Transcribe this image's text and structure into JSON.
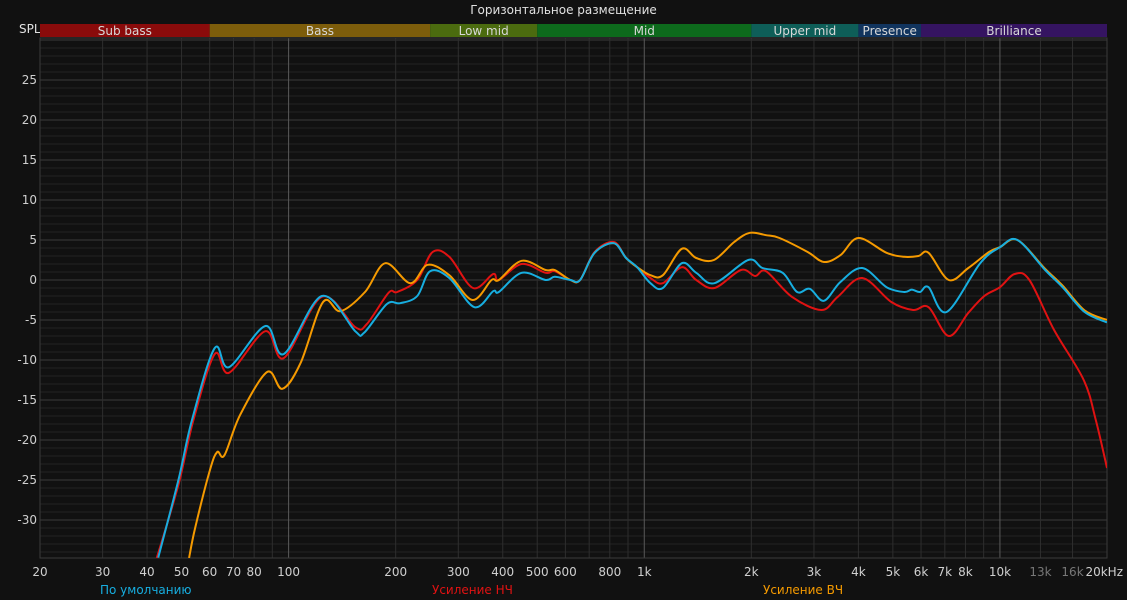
{
  "title": "Горизонтальное размещение",
  "y_axis_label": "SPL",
  "chart_data": {
    "type": "line",
    "title": "Горизонтальное размещение",
    "ylabel": "SPL",
    "xlabel": "",
    "x_scale": "log",
    "xlim": [
      20,
      20000
    ],
    "ylim": [
      -34.75,
      30.25
    ],
    "grid": true,
    "x_ticks": [
      {
        "value": 20,
        "label": "20"
      },
      {
        "value": 30,
        "label": "30"
      },
      {
        "value": 40,
        "label": "40"
      },
      {
        "value": 50,
        "label": "50"
      },
      {
        "value": 60,
        "label": "60"
      },
      {
        "value": 70,
        "label": "70"
      },
      {
        "value": 80,
        "label": "80"
      },
      {
        "value": 100,
        "label": "100"
      },
      {
        "value": 200,
        "label": "200"
      },
      {
        "value": 300,
        "label": "300"
      },
      {
        "value": 400,
        "label": "400"
      },
      {
        "value": 500,
        "label": "500"
      },
      {
        "value": 600,
        "label": "600"
      },
      {
        "value": 800,
        "label": "800"
      },
      {
        "value": 1000,
        "label": "1k"
      },
      {
        "value": 2000,
        "label": "2k"
      },
      {
        "value": 3000,
        "label": "3k"
      },
      {
        "value": 4000,
        "label": "4k"
      },
      {
        "value": 5000,
        "label": "5k"
      },
      {
        "value": 6000,
        "label": "6k"
      },
      {
        "value": 7000,
        "label": "7k"
      },
      {
        "value": 8000,
        "label": "8k"
      },
      {
        "value": 10000,
        "label": "10k"
      },
      {
        "value": 13000,
        "label": "13k",
        "dim": true
      },
      {
        "value": 16000,
        "label": "16k",
        "dim": true
      },
      {
        "value": 20000,
        "label": "20kHz"
      }
    ],
    "y_ticks": [
      25,
      20,
      15,
      10,
      5,
      0,
      -5,
      -10,
      -15,
      -20,
      -25,
      -30
    ],
    "bands": [
      {
        "name": "Sub bass",
        "from": 20,
        "to": 60,
        "color": "#8a0b0b"
      },
      {
        "name": "Bass",
        "from": 60,
        "to": 250,
        "color": "#7d5d0b"
      },
      {
        "name": "Low mid",
        "from": 250,
        "to": 500,
        "color": "#4b6b0f"
      },
      {
        "name": "Mid",
        "from": 500,
        "to": 2000,
        "color": "#0d6a1c"
      },
      {
        "name": "Upper mid",
        "from": 2000,
        "to": 4000,
        "color": "#0e5e58"
      },
      {
        "name": "Presence",
        "from": 4000,
        "to": 6000,
        "color": "#11345e"
      },
      {
        "name": "Brilliance",
        "from": 6000,
        "to": 20000,
        "color": "#351461"
      }
    ],
    "series": [
      {
        "name": "По умолчанию",
        "color": "#17aee0",
        "x": [
          43,
          49,
          53.5,
          62,
          68,
          86,
          97,
          124,
          154,
          163,
          189,
          206,
          230,
          250,
          283,
          333,
          376,
          390,
          452,
          528,
          560,
          620,
          660,
          725,
          821,
          889,
          955,
          1041,
          1128,
          1275,
          1400,
          1575,
          1960,
          2150,
          2450,
          2690,
          2920,
          3200,
          3560,
          4100,
          4800,
          5380,
          5650,
          5960,
          6300,
          7080,
          8800,
          10000,
          11200,
          13400,
          15000,
          17300,
          20000
        ],
        "y": [
          -34.7,
          -25,
          -17.5,
          -8.5,
          -10.9,
          -5.75,
          -9.25,
          -2,
          -6.4,
          -6.6,
          -3,
          -2.9,
          -2,
          1.1,
          0.25,
          -3.4,
          -1.4,
          -1.5,
          0.9,
          0,
          0.4,
          0,
          0,
          3.4,
          4.6,
          2.75,
          1.6,
          -0.4,
          -1,
          2.1,
          0.9,
          -0.4,
          2.5,
          1.5,
          0.9,
          -1.5,
          -1.1,
          -2.6,
          -0.25,
          1.5,
          -0.9,
          -1.5,
          -1.2,
          -1.5,
          -0.9,
          -4,
          2.1,
          4.1,
          5,
          1.25,
          -0.9,
          -4,
          -5.3
        ]
      },
      {
        "name": "Усиление НЧ",
        "color": "#e01212",
        "x": [
          42.6,
          49,
          54,
          62,
          68,
          86,
          97,
          124,
          154,
          166,
          191,
          202,
          230,
          254,
          283,
          330,
          376,
          390,
          452,
          528,
          560,
          620,
          660,
          725,
          821,
          889,
          955,
          1041,
          1128,
          1275,
          1400,
          1575,
          1870,
          2050,
          2200,
          2600,
          3150,
          3500,
          4100,
          4950,
          5700,
          6300,
          7180,
          8150,
          9040,
          10000,
          11000,
          12100,
          14200,
          17200,
          18600,
          20000
        ],
        "y": [
          -34.75,
          -25.6,
          -17.5,
          -9.25,
          -11.6,
          -6.4,
          -9.75,
          -2.1,
          -5.9,
          -5.5,
          -1.6,
          -1.5,
          0,
          3.5,
          2.9,
          -1,
          0.75,
          0,
          2,
          0.9,
          1.1,
          0,
          0,
          3.5,
          4.75,
          2.75,
          1.6,
          0.25,
          -0.4,
          1.6,
          0,
          -1,
          1.25,
          0.5,
          1.1,
          -2.1,
          -3.75,
          -2.1,
          0.25,
          -2.75,
          -3.75,
          -3.4,
          -7,
          -4.1,
          -2,
          -0.9,
          0.75,
          0,
          -6.25,
          -12.5,
          -17.5,
          -23.5
        ]
      },
      {
        "name": "Усиление ВЧ",
        "color": "#f59a00",
        "x": [
          52.5,
          54.6,
          60.1,
          63,
          66,
          73,
          87,
          96,
          108,
          125,
          140,
          164,
          187,
          220,
          246,
          283,
          329,
          372,
          390,
          452,
          528,
          560,
          620,
          660,
          725,
          821,
          889,
          955,
          1041,
          1128,
          1275,
          1400,
          1570,
          1790,
          1980,
          2200,
          2400,
          2880,
          3200,
          3560,
          4000,
          4800,
          5380,
          5900,
          6300,
          7180,
          8150,
          9320,
          10000,
          11200,
          13400,
          15000,
          17300,
          20000
        ],
        "y": [
          -34.75,
          -31,
          -23.75,
          -21.5,
          -21.9,
          -16.9,
          -11.5,
          -13.6,
          -10.4,
          -2.75,
          -3.9,
          -1.5,
          2.1,
          -0.4,
          1.9,
          0.6,
          -2.5,
          0,
          0,
          2.4,
          1.25,
          1.25,
          0,
          0,
          3.4,
          4.6,
          2.75,
          1.6,
          0.6,
          0.6,
          3.9,
          2.75,
          2.5,
          4.75,
          5.9,
          5.6,
          5.25,
          3.5,
          2.25,
          3.1,
          5.25,
          3.4,
          2.9,
          3,
          3.4,
          0,
          1.5,
          3.5,
          4.1,
          5,
          1.4,
          -0.7,
          -3.8,
          -5
        ]
      }
    ]
  }
}
